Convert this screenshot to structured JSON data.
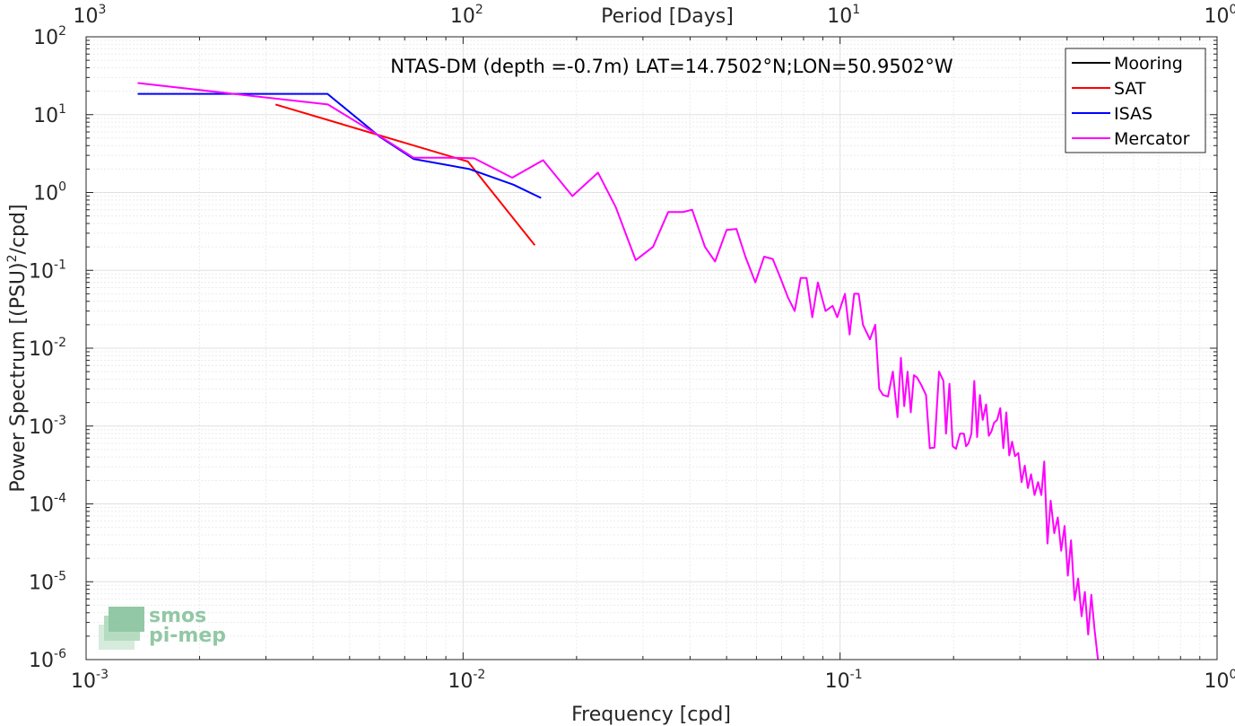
{
  "chart_data": {
    "type": "line",
    "title": "NTAS-DM (depth =-0.7m) LAT=14.7502°N;LON=50.9502°W",
    "xlabel": "Frequency [cpd]",
    "ylabel": "Power Spectrum [(PSU)",
    "ylabel_sup": "2",
    "ylabel_tail": "/cpd]",
    "top_xlabel": "Period [Days]",
    "xscale": "log",
    "yscale": "log",
    "xlim": [
      0.001,
      1
    ],
    "ylim": [
      1e-06,
      100
    ],
    "grid": true,
    "legend_position": "top-right",
    "x_ticks": [
      {
        "base": "10",
        "exp": "-3"
      },
      {
        "base": "10",
        "exp": "-2"
      },
      {
        "base": "10",
        "exp": "-1"
      },
      {
        "base": "10",
        "exp": "0"
      }
    ],
    "y_ticks": [
      {
        "base": "10",
        "exp": "-6"
      },
      {
        "base": "10",
        "exp": "-5"
      },
      {
        "base": "10",
        "exp": "-4"
      },
      {
        "base": "10",
        "exp": "-3"
      },
      {
        "base": "10",
        "exp": "-2"
      },
      {
        "base": "10",
        "exp": "-1"
      },
      {
        "base": "10",
        "exp": "0"
      },
      {
        "base": "10",
        "exp": "1"
      },
      {
        "base": "10",
        "exp": "2"
      }
    ],
    "top_ticks": [
      {
        "base": "10",
        "exp": "3"
      },
      {
        "base": "10",
        "exp": "2"
      },
      {
        "base": "10",
        "exp": "1"
      },
      {
        "base": "10",
        "exp": "0"
      }
    ],
    "series": [
      {
        "name": "Mooring",
        "color": "#000000",
        "x": [],
        "y": []
      },
      {
        "name": "SAT",
        "color": "#ff0000",
        "x": [
          0.00318,
          0.0103,
          0.0155
        ],
        "y": [
          13.5,
          2.5,
          0.21
        ]
      },
      {
        "name": "ISAS",
        "color": "#0000ff",
        "x": [
          0.00137,
          0.00437,
          0.00601,
          0.00739,
          0.0104,
          0.0136,
          0.0161
        ],
        "y": [
          18.5,
          18.5,
          5.2,
          2.7,
          2.0,
          1.26,
          0.85
        ]
      },
      {
        "name": "Mercator",
        "color": "#ff00ff",
        "x": [
          0.00137,
          0.00438,
          0.00601,
          0.00739,
          0.00902,
          0.0107,
          0.0135,
          0.0163,
          0.0195,
          0.0228,
          0.0254,
          0.0287,
          0.0319,
          0.035,
          0.0383,
          0.0405,
          0.0438,
          0.0466,
          0.05,
          0.0531,
          0.0561,
          0.0596,
          0.0629,
          0.0663,
          0.0695,
          0.0727,
          0.0758,
          0.0786,
          0.0815,
          0.0844,
          0.0873,
          0.0915,
          0.0955,
          0.0983,
          0.103,
          0.106,
          0.109,
          0.112,
          0.115,
          0.12,
          0.124,
          0.127,
          0.13,
          0.134,
          0.138,
          0.142,
          0.145,
          0.148,
          0.151,
          0.154,
          0.157,
          0.16,
          0.164,
          0.169,
          0.173,
          0.178,
          0.183,
          0.188,
          0.191,
          0.195,
          0.199,
          0.203,
          0.208,
          0.213,
          0.216,
          0.219,
          0.223,
          0.227,
          0.231,
          0.235,
          0.239,
          0.244,
          0.248,
          0.252,
          0.256,
          0.261,
          0.266,
          0.271,
          0.276,
          0.281,
          0.286,
          0.291,
          0.297,
          0.303,
          0.309,
          0.315,
          0.321,
          0.328,
          0.335,
          0.342,
          0.348,
          0.355,
          0.362,
          0.37,
          0.378,
          0.386,
          0.394,
          0.402,
          0.41,
          0.419,
          0.428,
          0.437,
          0.446,
          0.455,
          0.464,
          0.473,
          0.483
        ],
        "y": [
          25.5,
          13.5,
          5.3,
          2.8,
          2.8,
          2.75,
          1.55,
          2.6,
          0.9,
          1.8,
          0.65,
          0.135,
          0.2,
          0.56,
          0.56,
          0.6,
          0.2,
          0.13,
          0.33,
          0.34,
          0.15,
          0.07,
          0.15,
          0.14,
          0.08,
          0.045,
          0.03,
          0.08,
          0.08,
          0.025,
          0.07,
          0.03,
          0.035,
          0.025,
          0.05,
          0.015,
          0.05,
          0.05,
          0.02,
          0.013,
          0.02,
          0.003,
          0.0025,
          0.0024,
          0.005,
          0.0013,
          0.0075,
          0.0018,
          0.005,
          0.0015,
          0.0045,
          0.0042,
          0.0034,
          0.0025,
          0.00052,
          0.00053,
          0.005,
          0.0038,
          0.0008,
          0.0035,
          0.00055,
          0.00051,
          0.0008,
          0.0008,
          0.00055,
          0.0006,
          0.0008,
          0.0038,
          0.00072,
          0.0025,
          0.0012,
          0.0019,
          0.00075,
          0.00085,
          0.0011,
          0.0012,
          0.0017,
          0.00052,
          0.0015,
          0.00042,
          0.00063,
          0.00041,
          0.00045,
          0.00019,
          0.00031,
          0.00016,
          0.00024,
          0.00013,
          0.00019,
          0.00013,
          0.00035,
          3.1e-05,
          0.00011,
          4.2e-05,
          6.7e-05,
          2.5e-05,
          5.2e-05,
          1.2e-05,
          3.4e-05,
          5.8e-06,
          1.1e-05,
          3.6e-06,
          7.4e-06,
          2.1e-06,
          6.8e-06,
          2.5e-06,
          1e-06
        ]
      }
    ],
    "logo": {
      "line1": "smos",
      "line2": "pi-mep"
    }
  }
}
